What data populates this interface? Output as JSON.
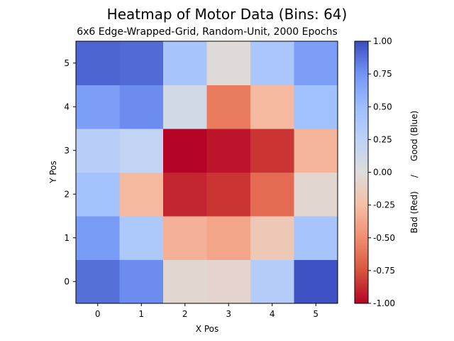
{
  "chart_data": {
    "type": "heatmap",
    "title": "Heatmap of Motor Data (Bins: 64)",
    "subtitle": "6x6 Edge-Wrapped-Grid, Random-Unit, 2000 Epochs",
    "xlabel": "X Pos",
    "ylabel": "Y Pos",
    "x_categories": [
      "0",
      "1",
      "2",
      "3",
      "4",
      "5"
    ],
    "y_categories": [
      "0",
      "1",
      "2",
      "3",
      "4",
      "5"
    ],
    "values_by_y": [
      [
        0.88,
        0.78,
        -0.05,
        -0.07,
        0.32,
        0.98
      ],
      [
        0.72,
        0.38,
        -0.32,
        -0.38,
        -0.17,
        0.42
      ],
      [
        0.45,
        -0.28,
        -0.9,
        -0.85,
        -0.65,
        -0.05
      ],
      [
        0.3,
        0.22,
        -1.0,
        -0.95,
        -0.85,
        -0.3
      ],
      [
        0.7,
        0.78,
        0.1,
        -0.58,
        -0.28,
        0.48
      ],
      [
        0.92,
        0.9,
        0.42,
        -0.02,
        0.4,
        0.7
      ]
    ],
    "colorbar": {
      "colormap": "coolwarm_r",
      "range": [
        -1.0,
        1.0
      ],
      "ticks": [
        "-1.00",
        "-0.75",
        "-0.50",
        "-0.25",
        "0.00",
        "0.25",
        "0.50",
        "0.75",
        "1.00"
      ],
      "label": "Bad (Red)     /     Good (Blue)"
    }
  }
}
